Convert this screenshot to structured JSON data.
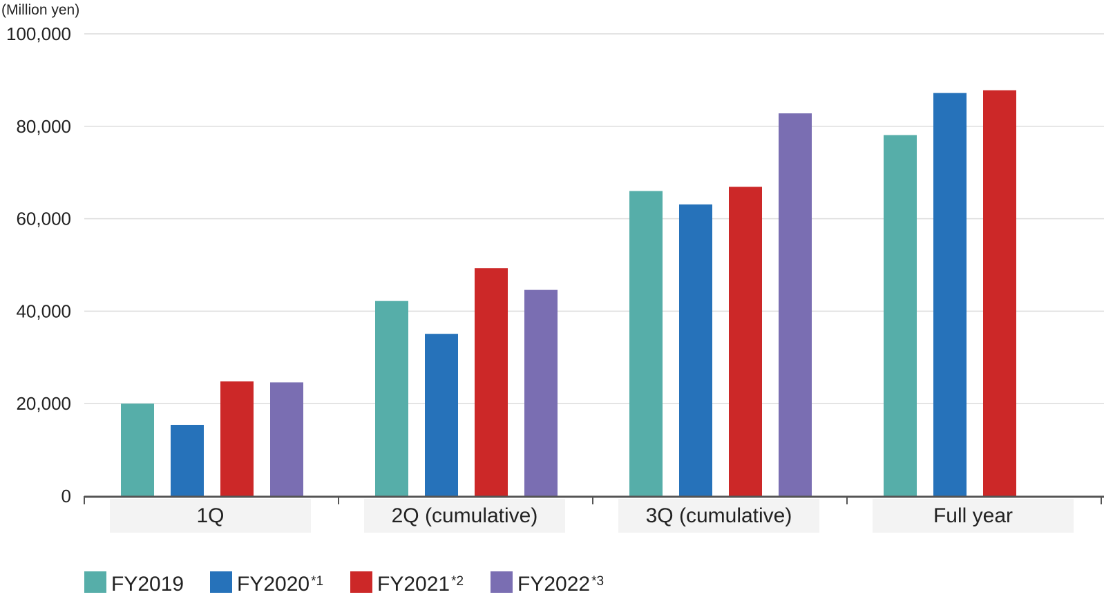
{
  "chart_data": {
    "type": "bar",
    "title": "",
    "unit_label": "(Million yen)",
    "xlabel": "",
    "ylabel": "",
    "ylim": [
      0,
      100000
    ],
    "yticks": [
      0,
      20000,
      40000,
      60000,
      80000,
      100000
    ],
    "ytick_labels": [
      "0",
      "20,000",
      "40,000",
      "60,000",
      "80,000",
      "100,000"
    ],
    "grid": true,
    "legend_position": "bottom-left",
    "categories": [
      "1Q",
      "2Q (cumulative)",
      "3Q (cumulative)",
      "Full year"
    ],
    "series": [
      {
        "name": "FY2019",
        "note": "",
        "color": "#56AEA9",
        "values": [
          20000,
          42200,
          66000,
          78100
        ]
      },
      {
        "name": "FY2020",
        "note": "*1",
        "color": "#2672BA",
        "values": [
          15400,
          35100,
          63100,
          87200
        ]
      },
      {
        "name": "FY2021",
        "note": "*2",
        "color": "#CC2828",
        "values": [
          24800,
          49300,
          66900,
          87800
        ]
      },
      {
        "name": "FY2022",
        "note": "*3",
        "color": "#7A6EB2",
        "values": [
          24600,
          44600,
          82800,
          null
        ]
      }
    ]
  },
  "colors": {
    "grid": "#dcdcdc",
    "axis": "#555555",
    "category_band": "#f3f3f3",
    "text": "#222222"
  }
}
